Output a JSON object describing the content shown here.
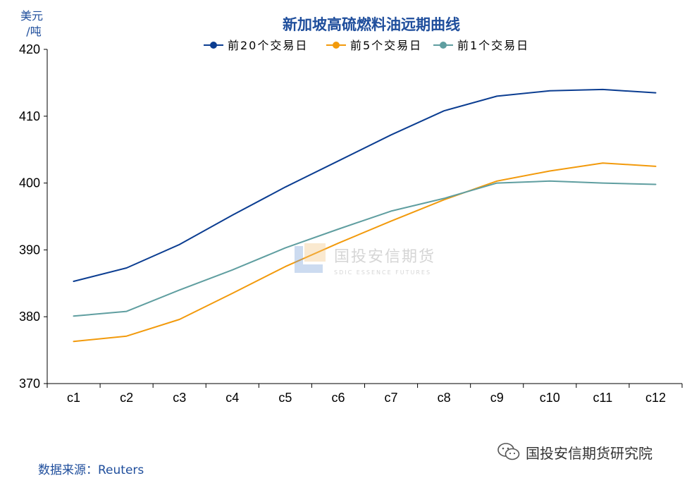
{
  "chart_data": {
    "type": "line",
    "title": "新加坡高硫燃料油远期曲线",
    "unit_line1": "美元",
    "unit_line2": "/吨",
    "categories": [
      "c1",
      "c2",
      "c3",
      "c4",
      "c5",
      "c6",
      "c7",
      "c8",
      "c9",
      "c10",
      "c11",
      "c12"
    ],
    "ylim": [
      370,
      420
    ],
    "yticks": [
      370,
      380,
      390,
      400,
      410,
      420
    ],
    "legend_position": "top-center",
    "series": [
      {
        "name": "前20个交易日",
        "color": "#0b3d91",
        "values": [
          385.3,
          387.3,
          390.8,
          395.2,
          399.4,
          403.3,
          407.2,
          410.8,
          413.0,
          413.8,
          414.0,
          413.5
        ]
      },
      {
        "name": "前5个交易日",
        "color": "#f29a0c",
        "values": [
          376.3,
          377.1,
          379.6,
          383.5,
          387.5,
          391.0,
          394.3,
          397.5,
          400.3,
          401.8,
          403.0,
          402.5
        ]
      },
      {
        "name": "前1个交易日",
        "color": "#5f9ea0",
        "values": [
          380.1,
          380.8,
          384.0,
          387.0,
          390.3,
          393.1,
          395.8,
          397.7,
          400.0,
          400.3,
          400.0,
          399.8
        ]
      }
    ]
  },
  "footer": {
    "source_prefix": "数据来源：",
    "source_name": "Reuters",
    "brand": "国投安信期货研究院",
    "brand_icon": "wechat-icon"
  },
  "watermark": {
    "cn": "国投安信期货",
    "en": "SDIC ESSENCE FUTURES"
  }
}
